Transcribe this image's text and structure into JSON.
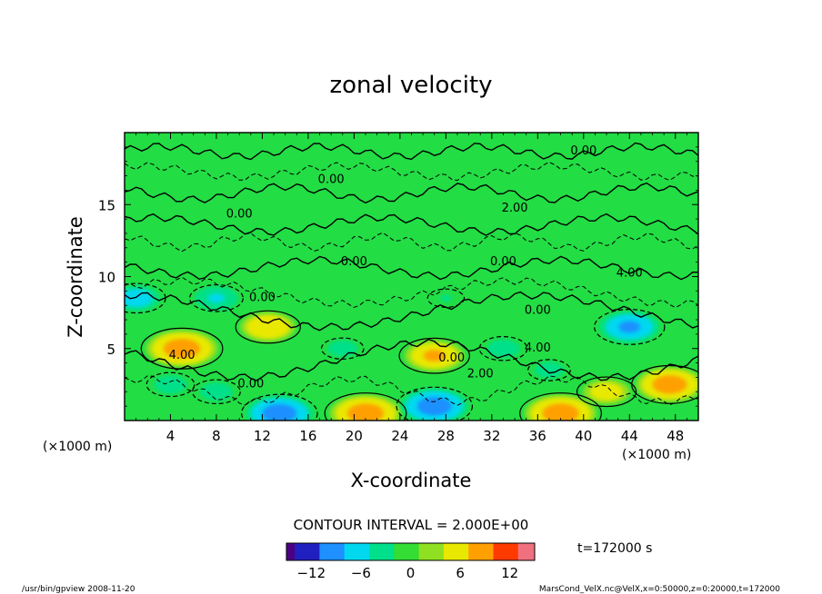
{
  "chart_data": {
    "type": "heatmap",
    "title": "zonal velocity",
    "xlabel": "X-coordinate",
    "ylabel": "Z-coordinate",
    "x_unit_left": "(×1000 m)",
    "x_unit_right": "(×1000 m)",
    "xlim": [
      0,
      50
    ],
    "ylim": [
      0,
      20
    ],
    "xticks": [
      4,
      8,
      12,
      16,
      20,
      24,
      28,
      32,
      36,
      40,
      44,
      48
    ],
    "yticks": [
      5,
      10,
      15
    ],
    "contour_interval_text": "CONTOUR INTERVAL = 2.000E+00",
    "contour_labels": [
      "0.00",
      "0.00",
      "0.00",
      "2.00",
      "0.00",
      "0.00",
      "0.00",
      "0.00",
      "4.00",
      "0.00",
      "0.00",
      "4.00",
      "4.00",
      "2.00"
    ],
    "time_text": "t=172000 s",
    "colorbar": {
      "range": [
        -15,
        15
      ],
      "ticks": [
        -12,
        -6,
        0,
        6,
        12
      ],
      "tick_labels": [
        "−12",
        "−6",
        "0",
        "6",
        "12"
      ],
      "colors": [
        "#4b0082",
        "#2020c0",
        "#1e90ff",
        "#00d8f0",
        "#00e08a",
        "#33dd33",
        "#8fe020",
        "#e8e800",
        "#ffa000",
        "#ff3a00",
        "#f07080"
      ]
    },
    "features": [
      {
        "x": 5,
        "z": 5,
        "value": 10
      },
      {
        "x": 12.5,
        "z": 6.5,
        "value": 7
      },
      {
        "x": 27,
        "z": 4.5,
        "value": 8
      },
      {
        "x": 21,
        "z": 0.5,
        "value": 10
      },
      {
        "x": 38,
        "z": 0.5,
        "value": 10
      },
      {
        "x": 47.5,
        "z": 2.5,
        "value": 9
      },
      {
        "x": 42,
        "z": 2,
        "value": 6
      },
      {
        "x": 44,
        "z": 6.5,
        "value": -8
      },
      {
        "x": 27,
        "z": 1,
        "value": -9
      },
      {
        "x": 13.5,
        "z": 0.5,
        "value": -9
      },
      {
        "x": 1,
        "z": 8.5,
        "value": -6
      },
      {
        "x": 8,
        "z": 8.5,
        "value": -5
      },
      {
        "x": 4,
        "z": 2.5,
        "value": -4
      },
      {
        "x": 8,
        "z": 2,
        "value": -4
      },
      {
        "x": 19,
        "z": 5,
        "value": -3
      },
      {
        "x": 33,
        "z": 5,
        "value": -4
      },
      {
        "x": 37,
        "z": 3.5,
        "value": -3
      },
      {
        "x": 28,
        "z": 8.5,
        "value": -2
      }
    ]
  },
  "footer": {
    "left": "/usr/bin/gpview  2008-11-20",
    "right": "MarsCond_VelX.nc@VelX,x=0:50000,z=0:20000,t=172000"
  }
}
